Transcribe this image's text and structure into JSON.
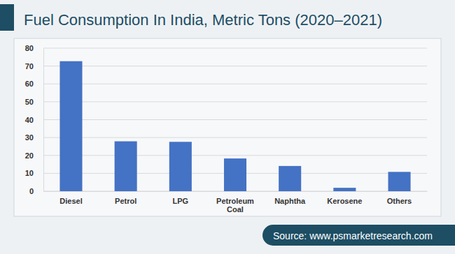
{
  "chart_data": {
    "type": "bar",
    "title": "Fuel Consumption In India, Metric Tons (2020–2021)",
    "categories": [
      "Diesel",
      "Petrol",
      "LPG",
      "Petroleum Coal",
      "Naphtha",
      "Kerosene",
      "Others"
    ],
    "values": [
      72.7,
      27.9,
      27.6,
      18.3,
      14.1,
      1.9,
      10.8
    ],
    "color": "#4472c4",
    "ylim": [
      0,
      80
    ],
    "yticks": [
      0,
      10,
      20,
      30,
      40,
      50,
      60,
      70,
      80
    ],
    "grid": true,
    "annotations": [
      "Source: www.psmarketresearch.com"
    ]
  }
}
